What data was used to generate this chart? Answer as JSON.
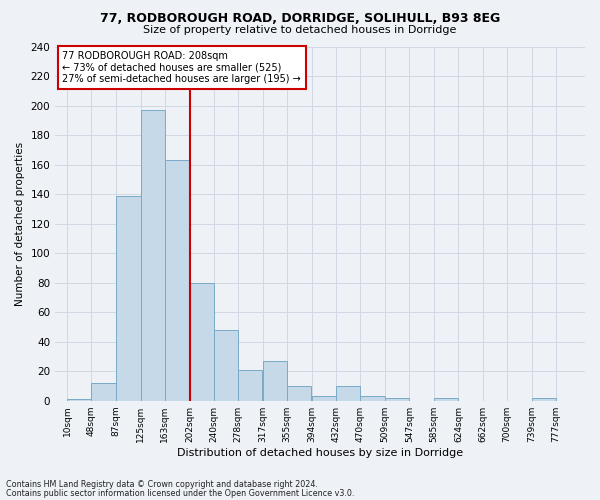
{
  "title1": "77, RODBOROUGH ROAD, DORRIDGE, SOLIHULL, B93 8EG",
  "title2": "Size of property relative to detached houses in Dorridge",
  "xlabel": "Distribution of detached houses by size in Dorridge",
  "ylabel": "Number of detached properties",
  "bin_labels": [
    "10sqm",
    "48sqm",
    "87sqm",
    "125sqm",
    "163sqm",
    "202sqm",
    "240sqm",
    "278sqm",
    "317sqm",
    "355sqm",
    "394sqm",
    "432sqm",
    "470sqm",
    "509sqm",
    "547sqm",
    "585sqm",
    "624sqm",
    "662sqm",
    "700sqm",
    "739sqm",
    "777sqm"
  ],
  "bin_edges": [
    10,
    48,
    87,
    125,
    163,
    202,
    240,
    278,
    317,
    355,
    394,
    432,
    470,
    509,
    547,
    585,
    624,
    662,
    700,
    739,
    777
  ],
  "counts": [
    1,
    12,
    139,
    197,
    163,
    80,
    48,
    21,
    27,
    10,
    3,
    10,
    3,
    2,
    0,
    2,
    0,
    0,
    0,
    2,
    0
  ],
  "bar_color": "#c6d9e8",
  "bar_edge_color": "#7aaac8",
  "grid_color": "#d0d8e4",
  "vline_color": "#cc0000",
  "annotation_text": "77 RODBOROUGH ROAD: 208sqm\n← 73% of detached houses are smaller (525)\n27% of semi-detached houses are larger (195) →",
  "annotation_box_color": "white",
  "annotation_box_edge_color": "#cc0000",
  "ylim": [
    0,
    240
  ],
  "yticks": [
    0,
    20,
    40,
    60,
    80,
    100,
    120,
    140,
    160,
    180,
    200,
    220,
    240
  ],
  "footnote1": "Contains HM Land Registry data © Crown copyright and database right 2024.",
  "footnote2": "Contains public sector information licensed under the Open Government Licence v3.0.",
  "background_color": "#eef2f7"
}
